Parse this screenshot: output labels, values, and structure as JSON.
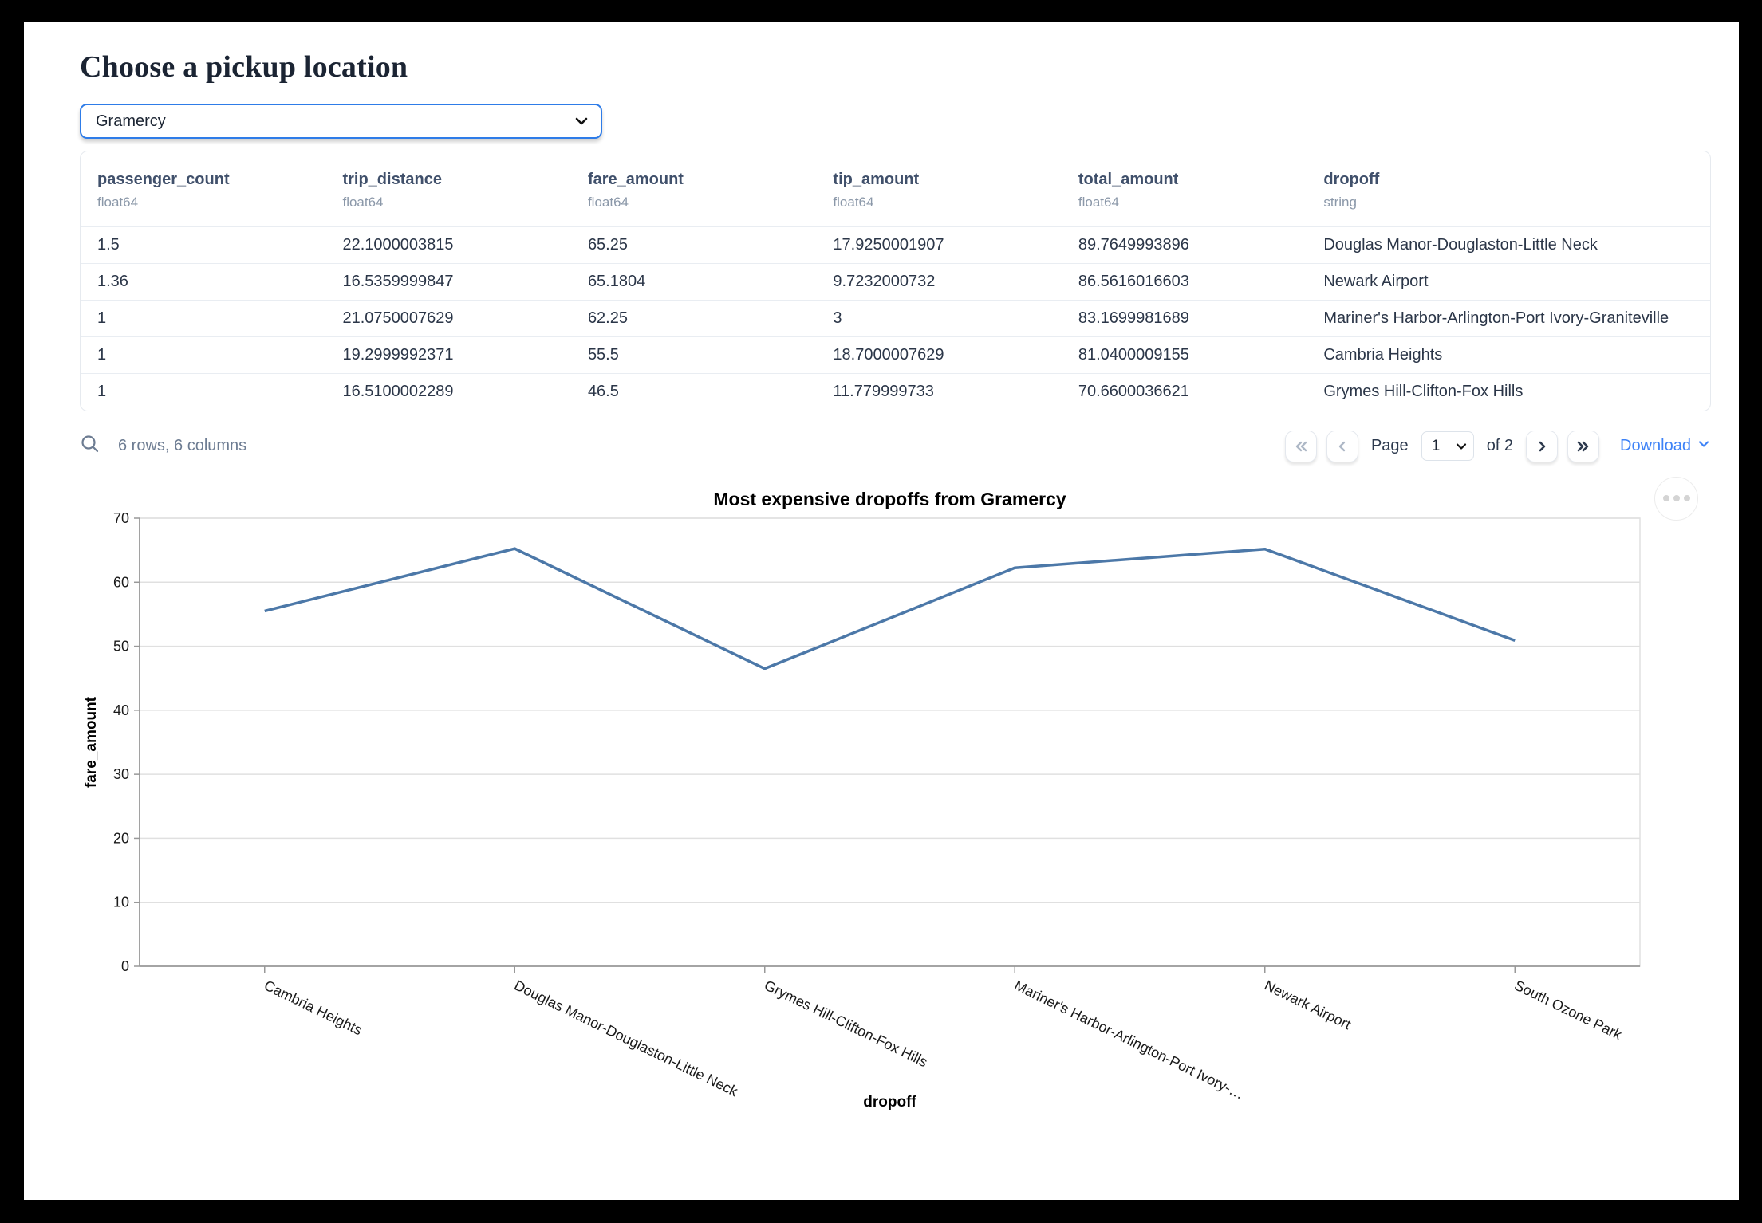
{
  "page": {
    "title": "Choose a pickup location"
  },
  "pickup_select": {
    "value": "Gramercy"
  },
  "table": {
    "columns": [
      {
        "name": "passenger_count",
        "dtype": "float64"
      },
      {
        "name": "trip_distance",
        "dtype": "float64"
      },
      {
        "name": "fare_amount",
        "dtype": "float64"
      },
      {
        "name": "tip_amount",
        "dtype": "float64"
      },
      {
        "name": "total_amount",
        "dtype": "float64"
      },
      {
        "name": "dropoff",
        "dtype": "string"
      }
    ],
    "rows": [
      [
        "1.5",
        "22.1000003815",
        "65.25",
        "17.9250001907",
        "89.7649993896",
        "Douglas Manor-Douglaston-Little Neck"
      ],
      [
        "1.36",
        "16.5359999847",
        "65.1804",
        "9.7232000732",
        "86.5616016603",
        "Newark Airport"
      ],
      [
        "1",
        "21.0750007629",
        "62.25",
        "3",
        "83.1699981689",
        "Mariner's Harbor-Arlington-Port Ivory-Graniteville"
      ],
      [
        "1",
        "19.2999992371",
        "55.5",
        "18.7000007629",
        "81.0400009155",
        "Cambria Heights"
      ],
      [
        "1",
        "16.5100002289",
        "46.5",
        "11.779999733",
        "70.6600036621",
        "Grymes Hill-Clifton-Fox Hills"
      ]
    ],
    "summary": "6 rows, 6 columns",
    "pagination": {
      "page_label": "Page",
      "current_page": "1",
      "total_label": "of 2",
      "download_label": "Download"
    }
  },
  "icons": {
    "search": "magnifier",
    "first_page": "double-chevron-left",
    "prev_page": "chevron-left",
    "next_page": "chevron-right",
    "last_page": "double-chevron-right",
    "download_caret": "chevron-down",
    "select_caret": "chevron-down",
    "chart_menu": "ellipsis-dots"
  },
  "colors": {
    "accent_blue": "#2e7ce8",
    "link_blue": "#3d82f7",
    "line_blue": "#4c78a8",
    "grid": "#e0e0e0",
    "axis_domain": "#999999"
  },
  "chart_data": {
    "type": "line",
    "title": "Most expensive dropoffs from Gramercy",
    "xlabel": "dropoff",
    "ylabel": "fare_amount",
    "categories": [
      "Cambria Heights",
      "Douglas Manor-Douglaston-Little Neck",
      "Grymes Hill-Clifton-Fox Hills",
      "Mariner's Harbor-Arlington-Port Ivory-…",
      "Newark Airport",
      "South Ozone Park"
    ],
    "values": [
      55.5,
      65.25,
      46.5,
      62.25,
      65.1804,
      50.9
    ],
    "ylim": [
      0,
      70
    ],
    "yticks": [
      0,
      10,
      20,
      30,
      40,
      50,
      60,
      70
    ],
    "grid": true,
    "legend": "none",
    "line_color": "#4c78a8"
  }
}
